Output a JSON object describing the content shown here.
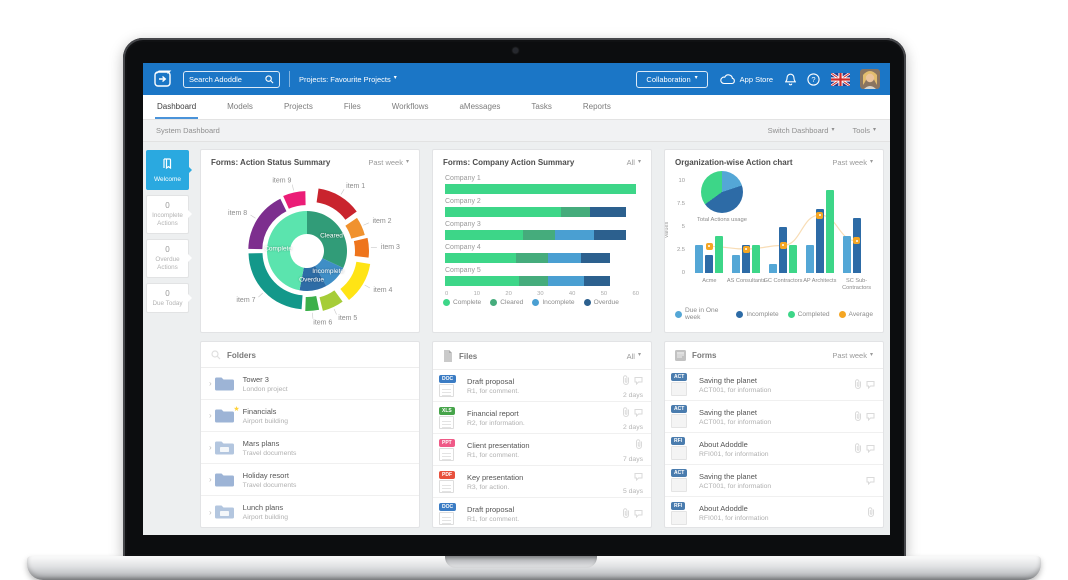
{
  "header": {
    "search_placeholder": "Search Adoddle",
    "project_selector": "Projects: Favourite Projects",
    "collaboration_label": "Collaboration",
    "app_store_label": "App Store",
    "help_glyph": "?"
  },
  "nav": {
    "tabs": [
      {
        "label": "Dashboard",
        "active": true
      },
      {
        "label": "Models",
        "active": false
      },
      {
        "label": "Projects",
        "active": false
      },
      {
        "label": "Files",
        "active": false
      },
      {
        "label": "Workflows",
        "active": false
      },
      {
        "label": "aMessages",
        "active": false
      },
      {
        "label": "Tasks",
        "active": false
      },
      {
        "label": "Reports",
        "active": false
      }
    ]
  },
  "subheader": {
    "title": "System Dashboard",
    "switch_label": "Switch Dashboard",
    "tools_label": "Tools"
  },
  "sidebar": {
    "items": [
      {
        "label": "Welcome",
        "active": true,
        "icon": "book-icon"
      },
      {
        "count": "0",
        "label": "Incomplete Actions",
        "active": false
      },
      {
        "count": "0",
        "label": "Overdue Actions",
        "active": false
      },
      {
        "count": "0",
        "label": "Due Today",
        "active": false
      }
    ]
  },
  "panels": {
    "action_status": {
      "title": "Forms: Action Status Summary",
      "filter": "Past week"
    },
    "company_action": {
      "title": "Forms: Company Action Summary",
      "filter": "All"
    },
    "org_chart": {
      "title": "Organization-wise Action chart",
      "filter": "Past week"
    },
    "folders": {
      "title": "Folders",
      "rows": [
        {
          "title": "Tower 3",
          "subtitle": "London project",
          "starred": false,
          "variant": "plain"
        },
        {
          "title": "Financials",
          "subtitle": "Airport building",
          "starred": true,
          "variant": "plain"
        },
        {
          "title": "Mars plans",
          "subtitle": "Travel documents",
          "starred": false,
          "variant": "docs"
        },
        {
          "title": "Holiday resort",
          "subtitle": "Travel documents",
          "starred": false,
          "variant": "plain"
        },
        {
          "title": "Lunch plans",
          "subtitle": "Airport building",
          "starred": false,
          "variant": "docs"
        }
      ]
    },
    "files": {
      "title": "Files",
      "filter": "All",
      "rows": [
        {
          "badge": "DOC",
          "badge_color": "#3b7cc4",
          "title": "Draft proposal",
          "subtitle": "R1, for comment.",
          "age": "2 days",
          "attachment": true,
          "comment": true
        },
        {
          "badge": "XLS",
          "badge_color": "#46a44a",
          "title": "Financial report",
          "subtitle": "R2, for information.",
          "age": "2 days",
          "attachment": true,
          "comment": true
        },
        {
          "badge": "PPT",
          "badge_color": "#ef5a87",
          "title": "Client presentation",
          "subtitle": "R1, for comment.",
          "age": "7 days",
          "attachment": true,
          "comment": false
        },
        {
          "badge": "PDF",
          "badge_color": "#e8513d",
          "title": "Key presentation",
          "subtitle": "R3, for action.",
          "age": "5 days",
          "attachment": false,
          "comment": true
        },
        {
          "badge": "DOC",
          "badge_color": "#3b7cc4",
          "title": "Draft proposal",
          "subtitle": "R1, for comment.",
          "age": "",
          "attachment": true,
          "comment": true
        }
      ]
    },
    "forms": {
      "title": "Forms",
      "filter": "Past week",
      "rows": [
        {
          "badge": "ACT",
          "badge_color": "#4a7cae",
          "title": "Saving the planet",
          "subtitle": "ACT001, for information",
          "age": "",
          "attachment": true,
          "comment": true
        },
        {
          "badge": "ACT",
          "badge_color": "#4a7cae",
          "title": "Saving the planet",
          "subtitle": "ACT001, for information",
          "age": "",
          "attachment": true,
          "comment": true
        },
        {
          "badge": "RFI",
          "badge_color": "#4a7cae",
          "title": "About Adoddle",
          "subtitle": "RFI001, for information",
          "age": "",
          "attachment": true,
          "comment": true
        },
        {
          "badge": "ACT",
          "badge_color": "#4a7cae",
          "title": "Saving the planet",
          "subtitle": "ACT001, for information",
          "age": "",
          "attachment": false,
          "comment": true
        },
        {
          "badge": "RFI",
          "badge_color": "#4a7cae",
          "title": "About Adoddle",
          "subtitle": "RFI001, for information",
          "age": "",
          "attachment": true,
          "comment": false
        }
      ]
    }
  },
  "chart_data": [
    {
      "type": "sunburst",
      "title": "Forms: Action Status Summary",
      "inner": [
        {
          "label": "Cleared",
          "value": 32,
          "color": "#319c78"
        },
        {
          "label": "Incomplete",
          "value": 10,
          "color": "#3f8ec6"
        },
        {
          "label": "Overdue",
          "value": 11,
          "color": "#2e6ca6"
        },
        {
          "label": "Complete",
          "value": 47,
          "color": "#5be4ae"
        }
      ],
      "outer": [
        {
          "label": "item 1",
          "start": 8,
          "end": 54,
          "color": "#c9242e",
          "offset": 7
        },
        {
          "label": "item 2",
          "start": 56,
          "end": 75,
          "color": "#f0922e",
          "offset": 3
        },
        {
          "label": "item 3",
          "start": 77,
          "end": 97,
          "color": "#ee751d",
          "offset": 5
        },
        {
          "label": "item 4",
          "start": 99,
          "end": 142,
          "color": "#ffe415",
          "offset": 8
        },
        {
          "label": "item 5",
          "start": 144,
          "end": 166,
          "color": "#a6cd38",
          "offset": 5
        },
        {
          "label": "item 6",
          "start": 168,
          "end": 182,
          "color": "#3cb04a",
          "offset": 3
        },
        {
          "label": "item 7",
          "start": 184,
          "end": 269,
          "color": "#13988a",
          "offset": 2
        },
        {
          "label": "item 8",
          "start": 271,
          "end": 334,
          "color": "#7d2e8e",
          "offset": 2
        },
        {
          "label": "item 9",
          "start": 336,
          "end": 359,
          "color": "#eb1d77",
          "offset": 3
        }
      ]
    },
    {
      "type": "bar",
      "orientation": "horizontal-stacked",
      "title": "Forms: Company Action Summary",
      "categories": [
        "Company 1",
        "Company 2",
        "Company 3",
        "Company 4",
        "Company 5"
      ],
      "series": [
        {
          "name": "Complete",
          "color": "#3dd688",
          "values": [
            59,
            36,
            24,
            22,
            23
          ]
        },
        {
          "name": "Cleared",
          "color": "#45ac7c",
          "values": [
            0,
            9,
            10,
            10,
            9
          ]
        },
        {
          "name": "Incomplete",
          "color": "#4a9fd2",
          "values": [
            0,
            0,
            12,
            10,
            11
          ]
        },
        {
          "name": "Overdue",
          "color": "#2c608e",
          "values": [
            0,
            11,
            10,
            9,
            8
          ]
        }
      ],
      "xlim": [
        0,
        60
      ],
      "xticks": [
        0,
        10,
        20,
        30,
        40,
        50,
        60
      ],
      "legend_position": "bottom"
    },
    {
      "type": "bar",
      "orientation": "vertical-grouped",
      "title": "Organization-wise Action chart",
      "categories": [
        "Acme",
        "AS Consultants",
        "GC Contractors",
        "AP Architects",
        "SC Sub-Contractors"
      ],
      "series": [
        {
          "name": "Due in One week",
          "color": "#54a7d6",
          "values": [
            3,
            2,
            1,
            3,
            4
          ]
        },
        {
          "name": "Incomplete",
          "color": "#2d6ba6",
          "values": [
            2,
            3,
            5,
            7,
            6
          ]
        },
        {
          "name": "Completed",
          "color": "#3dd688",
          "values": [
            4,
            3,
            3,
            9,
            0
          ]
        }
      ],
      "average": {
        "name": "Average",
        "color": "#f5a623",
        "line_color": "#f8ddb6",
        "values": [
          2.9,
          2.6,
          3.0,
          6.3,
          3.5
        ]
      },
      "ylabel": "Values",
      "yticks": [
        0,
        2.5,
        5,
        7.5,
        10
      ],
      "ylim": [
        0,
        10
      ],
      "pie": {
        "label": "Total Actions usage",
        "slices": [
          {
            "name": "Due in One week",
            "value": 20,
            "color": "#54a7d6"
          },
          {
            "name": "Incomplete",
            "value": 45,
            "color": "#2d6ba6"
          },
          {
            "name": "Completed",
            "value": 35,
            "color": "#3dd688"
          }
        ]
      },
      "legend_position": "bottom"
    }
  ]
}
